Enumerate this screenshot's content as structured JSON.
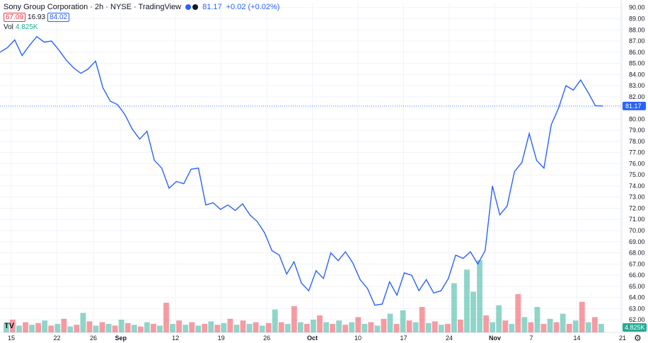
{
  "header": {
    "title": "Sony Group Corporation · 2h · NYSE · TradingView",
    "last": "81.17",
    "change": "+0.02 (+0.02%)",
    "open_label": "67.09",
    "mid_label": "16.93",
    "high_label": "84.02"
  },
  "volume": {
    "label": "Vol",
    "value": "4.825K"
  },
  "price_tag": "81.17",
  "volume_tag": "4.825K",
  "colors": {
    "line": "#2962ff",
    "up": "#22ab94",
    "down": "#f23645"
  },
  "chart_data": {
    "type": "line",
    "title": "Sony Group Corporation · 2h · NYSE · TradingView",
    "y_ticks": [
      "90.00",
      "89.00",
      "88.00",
      "87.00",
      "86.00",
      "85.00",
      "84.00",
      "83.00",
      "82.00",
      "81.00",
      "80.00",
      "79.00",
      "78.00",
      "77.00",
      "76.00",
      "75.00",
      "74.00",
      "73.00",
      "72.00",
      "71.00",
      "70.00",
      "69.00",
      "68.00",
      "67.00",
      "66.00",
      "65.00",
      "64.00",
      "63.00",
      "62.00"
    ],
    "x_ticks": [
      {
        "label": "15",
        "t": 0
      },
      {
        "label": "22",
        "t": 5
      },
      {
        "label": "26",
        "t": 9
      },
      {
        "label": "Sep",
        "t": 12,
        "bold": true
      },
      {
        "label": "12",
        "t": 18
      },
      {
        "label": "19",
        "t": 23
      },
      {
        "label": "26",
        "t": 28
      },
      {
        "label": "Oct",
        "t": 33,
        "bold": true
      },
      {
        "label": "10",
        "t": 38
      },
      {
        "label": "17",
        "t": 43
      },
      {
        "label": "24",
        "t": 48
      },
      {
        "label": "Nov",
        "t": 53,
        "bold": true
      },
      {
        "label": "7",
        "t": 57
      },
      {
        "label": "14",
        "t": 62
      },
      {
        "label": "21",
        "t": 67
      }
    ],
    "ylim": [
      61.5,
      90.3
    ],
    "current_price": 81.17,
    "series": [
      {
        "values": [
          86.0,
          86.4,
          87.1,
          85.7,
          86.6,
          87.4,
          86.9,
          87.0,
          86.2,
          85.3,
          84.6,
          84.1,
          84.5,
          85.2,
          82.8,
          81.6,
          81.3,
          80.4,
          79.1,
          78.2,
          78.9,
          76.3,
          75.6,
          73.8,
          74.4,
          74.2,
          75.5,
          75.6,
          72.3,
          72.5,
          71.9,
          72.3,
          71.8,
          72.4,
          71.4,
          70.8,
          69.8,
          68.2,
          67.8,
          66.1,
          67.2,
          65.3,
          64.6,
          66.4,
          65.7,
          68.0,
          67.3,
          68.1,
          67.1,
          65.6,
          64.8,
          63.3,
          63.4,
          65.4,
          64.2,
          66.2,
          66.0,
          64.6,
          65.6,
          64.4,
          64.6,
          65.7,
          67.8,
          67.5,
          68.1,
          67.0,
          68.2,
          74.0,
          71.4,
          72.2,
          75.3,
          76.1,
          78.7,
          76.3,
          75.6,
          79.5,
          81.0,
          83.0,
          82.6,
          83.5,
          82.4,
          81.2,
          81.17
        ]
      }
    ],
    "volume_bars": [
      {
        "h": 0.1,
        "up": true
      },
      {
        "h": 0.15,
        "up": false
      },
      {
        "h": 0.08,
        "up": true
      },
      {
        "h": 0.12,
        "up": false
      },
      {
        "h": 0.09,
        "up": true
      },
      {
        "h": 0.11,
        "up": false
      },
      {
        "h": 0.14,
        "up": true
      },
      {
        "h": 0.08,
        "up": false
      },
      {
        "h": 0.1,
        "up": true
      },
      {
        "h": 0.16,
        "up": false
      },
      {
        "h": 0.07,
        "up": true
      },
      {
        "h": 0.09,
        "up": false
      },
      {
        "h": 0.23,
        "up": true
      },
      {
        "h": 0.13,
        "up": false
      },
      {
        "h": 0.08,
        "up": true
      },
      {
        "h": 0.12,
        "up": false
      },
      {
        "h": 0.1,
        "up": true
      },
      {
        "h": 0.08,
        "up": false
      },
      {
        "h": 0.15,
        "up": true
      },
      {
        "h": 0.11,
        "up": false
      },
      {
        "h": 0.09,
        "up": true
      },
      {
        "h": 0.07,
        "up": false
      },
      {
        "h": 0.12,
        "up": true
      },
      {
        "h": 0.1,
        "up": false
      },
      {
        "h": 0.08,
        "up": true
      },
      {
        "h": 0.35,
        "up": false
      },
      {
        "h": 0.1,
        "up": true
      },
      {
        "h": 0.14,
        "up": false
      },
      {
        "h": 0.09,
        "up": true
      },
      {
        "h": 0.12,
        "up": false
      },
      {
        "h": 0.08,
        "up": true
      },
      {
        "h": 0.1,
        "up": false
      },
      {
        "h": 0.13,
        "up": true
      },
      {
        "h": 0.09,
        "up": false
      },
      {
        "h": 0.11,
        "up": true
      },
      {
        "h": 0.16,
        "up": false
      },
      {
        "h": 0.09,
        "up": true
      },
      {
        "h": 0.14,
        "up": false
      },
      {
        "h": 0.1,
        "up": true
      },
      {
        "h": 0.12,
        "up": false
      },
      {
        "h": 0.08,
        "up": true
      },
      {
        "h": 0.11,
        "up": false
      },
      {
        "h": 0.27,
        "up": true
      },
      {
        "h": 0.12,
        "up": false
      },
      {
        "h": 0.1,
        "up": true
      },
      {
        "h": 0.31,
        "up": false
      },
      {
        "h": 0.12,
        "up": true
      },
      {
        "h": 0.1,
        "up": false
      },
      {
        "h": 0.15,
        "up": true
      },
      {
        "h": 0.2,
        "up": false
      },
      {
        "h": 0.12,
        "up": true
      },
      {
        "h": 0.1,
        "up": false
      },
      {
        "h": 0.14,
        "up": true
      },
      {
        "h": 0.09,
        "up": false
      },
      {
        "h": 0.12,
        "up": true
      },
      {
        "h": 0.18,
        "up": false
      },
      {
        "h": 0.1,
        "up": true
      },
      {
        "h": 0.12,
        "up": false
      },
      {
        "h": 0.08,
        "up": true
      },
      {
        "h": 0.16,
        "up": false
      },
      {
        "h": 0.22,
        "up": true
      },
      {
        "h": 0.1,
        "up": false
      },
      {
        "h": 0.26,
        "up": true
      },
      {
        "h": 0.14,
        "up": false
      },
      {
        "h": 0.12,
        "up": true
      },
      {
        "h": 0.3,
        "up": false
      },
      {
        "h": 0.11,
        "up": true
      },
      {
        "h": 0.13,
        "up": false
      },
      {
        "h": 0.09,
        "up": true
      },
      {
        "h": 0.1,
        "up": false
      },
      {
        "h": 0.58,
        "up": true
      },
      {
        "h": 0.15,
        "up": false
      },
      {
        "h": 0.74,
        "up": true
      },
      {
        "h": 0.48,
        "up": true
      },
      {
        "h": 0.85,
        "up": true
      },
      {
        "h": 0.2,
        "up": false
      },
      {
        "h": 0.12,
        "up": true
      },
      {
        "h": 0.32,
        "up": true
      },
      {
        "h": 0.14,
        "up": false
      },
      {
        "h": 0.1,
        "up": true
      },
      {
        "h": 0.45,
        "up": false
      },
      {
        "h": 0.18,
        "up": true
      },
      {
        "h": 0.12,
        "up": false
      },
      {
        "h": 0.3,
        "up": true
      },
      {
        "h": 0.1,
        "up": false
      },
      {
        "h": 0.16,
        "up": true
      },
      {
        "h": 0.12,
        "up": false
      },
      {
        "h": 0.22,
        "up": true
      },
      {
        "h": 0.1,
        "up": false
      },
      {
        "h": 0.14,
        "up": true
      },
      {
        "h": 0.36,
        "up": false
      },
      {
        "h": 0.12,
        "up": true
      },
      {
        "h": 0.18,
        "up": false
      },
      {
        "h": 0.1,
        "up": true
      }
    ]
  }
}
